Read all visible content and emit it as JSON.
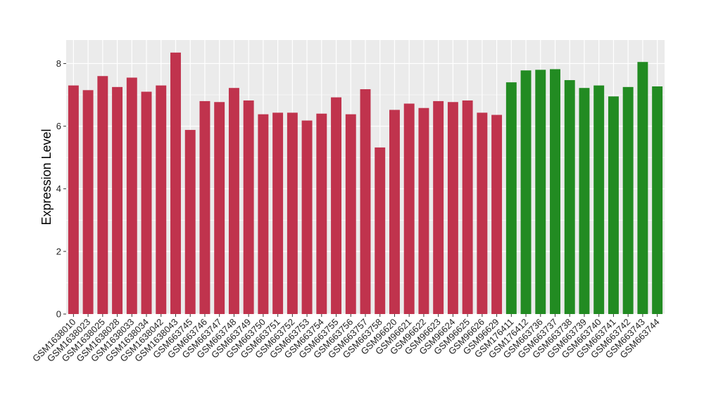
{
  "chart_data": {
    "type": "bar",
    "title": "",
    "xlabel": "",
    "ylabel": "Expression Level",
    "ylim": [
      0,
      8.75
    ],
    "yticks": [
      0,
      2,
      4,
      6,
      8
    ],
    "grid": true,
    "legend": "none",
    "colors": {
      "group_a": "#C0334D",
      "group_b": "#228B22",
      "panel_bg": "#EBEBEB",
      "grid": "#FFFFFF"
    },
    "categories": [
      "GSM1638010",
      "GSM1638023",
      "GSM1638025",
      "GSM1638028",
      "GSM1638033",
      "GSM1638034",
      "GSM1638042",
      "GSM1638043",
      "GSM663745",
      "GSM663746",
      "GSM663747",
      "GSM663748",
      "GSM663749",
      "GSM663750",
      "GSM663751",
      "GSM663752",
      "GSM663753",
      "GSM663754",
      "GSM663755",
      "GSM663756",
      "GSM663757",
      "GSM663758",
      "GSM96620",
      "GSM96621",
      "GSM96622",
      "GSM96623",
      "GSM96624",
      "GSM96625",
      "GSM96626",
      "GSM96629",
      "GSM176411",
      "GSM176412",
      "GSM663736",
      "GSM663737",
      "GSM663738",
      "GSM663739",
      "GSM663740",
      "GSM663741",
      "GSM663742",
      "GSM663743",
      "GSM663744"
    ],
    "values": [
      7.3,
      7.15,
      7.6,
      7.25,
      7.55,
      7.1,
      7.3,
      8.35,
      5.88,
      6.8,
      6.77,
      7.22,
      6.82,
      6.38,
      6.43,
      6.43,
      6.18,
      6.4,
      6.92,
      6.38,
      7.18,
      5.32,
      6.52,
      6.72,
      6.58,
      6.8,
      6.77,
      6.82,
      6.43,
      6.36,
      7.4,
      7.78,
      7.8,
      7.82,
      7.47,
      7.22,
      7.3,
      6.95,
      7.25,
      8.05,
      7.27
    ],
    "groups": [
      "a",
      "a",
      "a",
      "a",
      "a",
      "a",
      "a",
      "a",
      "a",
      "a",
      "a",
      "a",
      "a",
      "a",
      "a",
      "a",
      "a",
      "a",
      "a",
      "a",
      "a",
      "a",
      "a",
      "a",
      "a",
      "a",
      "a",
      "a",
      "a",
      "a",
      "b",
      "b",
      "b",
      "b",
      "b",
      "b",
      "b",
      "b",
      "b",
      "b",
      "b"
    ]
  }
}
